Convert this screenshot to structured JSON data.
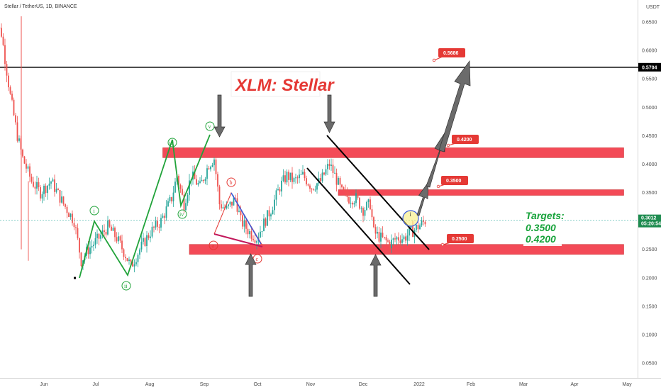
{
  "header": {
    "symbol": "Stellar / TetherUS, 1D, BINANCE",
    "currency": "USDT"
  },
  "title": "XLM: Stellar",
  "targets": {
    "heading": "Targets:",
    "values": [
      "0.3500",
      "0.4200"
    ]
  },
  "price_labels": {
    "current": "0.3012",
    "countdown": "05:20:54",
    "hline": "0.5704"
  },
  "chart_data": {
    "type": "candlestick",
    "title": "XLM: Stellar",
    "y_axis": {
      "min": 0.0,
      "max": 0.67,
      "ticks": [
        "0.6500",
        "0.6000",
        "0.5500",
        "0.5000",
        "0.4500",
        "0.4000",
        "0.3500",
        "0.3000",
        "0.2500",
        "0.2000",
        "0.1500",
        "0.1000",
        "0.0500"
      ],
      "position": "right"
    },
    "x_axis": {
      "ticks": [
        "Jun",
        "Jul",
        "Aug",
        "Sep",
        "Oct",
        "Nov",
        "Dec",
        "2022",
        "Feb",
        "Mar",
        "Apr",
        "May"
      ]
    },
    "price_path": [
      [
        "2021-05-03",
        0.66
      ],
      [
        "2021-05-08",
        0.63
      ],
      [
        "2021-05-13",
        0.52
      ],
      [
        "2021-05-17",
        0.45
      ],
      [
        "2021-05-20",
        0.41
      ],
      [
        "2021-05-25",
        0.37
      ],
      [
        "2021-05-30",
        0.35
      ],
      [
        "2021-06-05",
        0.37
      ],
      [
        "2021-06-12",
        0.33
      ],
      [
        "2021-06-18",
        0.3
      ],
      [
        "2021-06-22",
        0.23
      ],
      [
        "2021-06-26",
        0.25
      ],
      [
        "2021-07-02",
        0.27
      ],
      [
        "2021-07-07",
        0.29
      ],
      [
        "2021-07-12",
        0.27
      ],
      [
        "2021-07-17",
        0.24
      ],
      [
        "2021-07-20",
        0.22
      ],
      [
        "2021-07-25",
        0.25
      ],
      [
        "2021-07-31",
        0.28
      ],
      [
        "2021-08-06",
        0.3
      ],
      [
        "2021-08-12",
        0.34
      ],
      [
        "2021-08-15",
        0.38
      ],
      [
        "2021-08-19",
        0.33
      ],
      [
        "2021-08-23",
        0.38
      ],
      [
        "2021-08-28",
        0.36
      ],
      [
        "2021-09-02",
        0.4
      ],
      [
        "2021-09-05",
        0.41
      ],
      [
        "2021-09-08",
        0.33
      ],
      [
        "2021-09-12",
        0.32
      ],
      [
        "2021-09-17",
        0.34
      ],
      [
        "2021-09-20",
        0.3
      ],
      [
        "2021-09-25",
        0.28
      ],
      [
        "2021-09-29",
        0.27
      ],
      [
        "2021-10-02",
        0.29
      ],
      [
        "2021-10-07",
        0.32
      ],
      [
        "2021-10-12",
        0.36
      ],
      [
        "2021-10-16",
        0.38
      ],
      [
        "2021-10-20",
        0.37
      ],
      [
        "2021-10-25",
        0.38
      ],
      [
        "2021-10-30",
        0.36
      ],
      [
        "2021-11-04",
        0.37
      ],
      [
        "2021-11-09",
        0.4
      ],
      [
        "2021-11-12",
        0.38
      ],
      [
        "2021-11-16",
        0.35
      ],
      [
        "2021-11-20",
        0.34
      ],
      [
        "2021-11-24",
        0.34
      ],
      [
        "2021-11-28",
        0.32
      ],
      [
        "2021-12-02",
        0.33
      ],
      [
        "2021-12-04",
        0.28
      ],
      [
        "2021-12-08",
        0.27
      ],
      [
        "2021-12-13",
        0.26
      ],
      [
        "2021-12-17",
        0.27
      ],
      [
        "2021-12-21",
        0.27
      ],
      [
        "2021-12-25",
        0.28
      ],
      [
        "2021-12-29",
        0.29
      ],
      [
        "2022-01-02",
        0.3
      ]
    ],
    "zones": [
      {
        "y": 0.42,
        "label": "0.4200",
        "from": "2021-08-07",
        "to": "2022-04-24"
      },
      {
        "y": 0.35,
        "label": "0.3500",
        "from": "2021-11-14",
        "to": "2022-04-24"
      },
      {
        "y": 0.25,
        "label": "0.2500",
        "from": "2021-08-22",
        "to": "2022-04-24"
      }
    ],
    "horizontal_line": 0.5704,
    "target_marker": {
      "label": "0.5686",
      "y": 0.5686
    },
    "current_price": 0.3012,
    "wave_labels": [
      "i",
      "ii",
      "iii",
      "iv",
      "v",
      "a",
      "b",
      "c",
      "i"
    ],
    "legend": "none",
    "grid": false
  },
  "colors": {
    "up": "#26a69a",
    "down": "#ef5350",
    "zone": "#f23645",
    "wave": "#21a33a",
    "arrow": "#6b6b6b"
  }
}
